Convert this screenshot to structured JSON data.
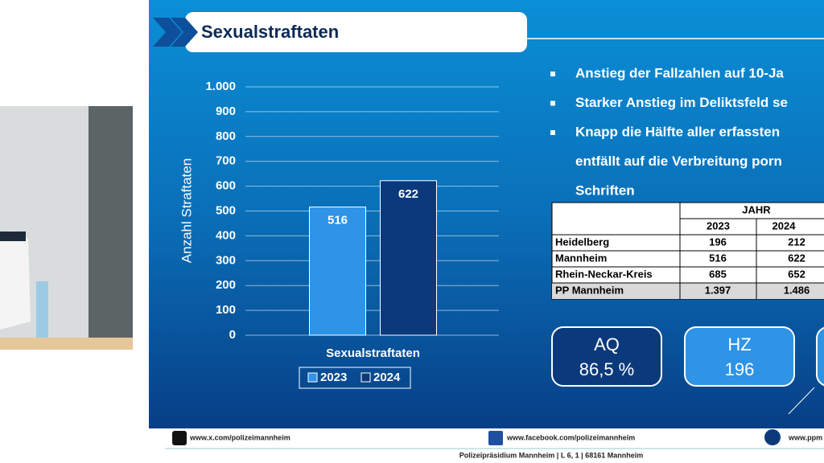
{
  "slide": {
    "title": "Sexualstraftaten",
    "bullets": [
      [
        "Anstieg der Fallzahlen auf 10-Ja"
      ],
      [
        "Starker Anstieg im Deliktsfeld se"
      ],
      [
        "Knapp die Hälfte aller erfassten",
        "entfällt auf die Verbreitung porn",
        "Schriften"
      ]
    ],
    "table": {
      "group_header": "JAHR",
      "columns": [
        "2023",
        "2024"
      ],
      "rows": [
        [
          "Heidelberg",
          "196",
          "212"
        ],
        [
          "Mannheim",
          "516",
          "622"
        ],
        [
          "Rhein-Neckar-Kreis",
          "685",
          "652"
        ],
        [
          "PP Mannheim",
          "1.397",
          "1.486"
        ]
      ]
    },
    "kpis": [
      {
        "label": "AQ",
        "value": "86,5 %"
      },
      {
        "label": "HZ",
        "value": "196"
      }
    ],
    "footer": {
      "x": "www.x.com/polizeimannheim",
      "facebook": "www.facebook.com/polizeimannheim",
      "web": "www.ppm",
      "address": "Polizeipräsidium Mannheim | L 6, 1 | 68161 Mannheim"
    }
  },
  "chart_data": {
    "type": "bar",
    "y_label": "Anzahl Straftaten",
    "categories": [
      "Sexualstraftaten"
    ],
    "series": [
      {
        "name": "2023",
        "color": "#2f93e6",
        "values": [
          516
        ]
      },
      {
        "name": "2024",
        "color": "#0b3a7c",
        "values": [
          622
        ]
      }
    ],
    "ylim": [
      0,
      1000
    ],
    "yticks": [
      0,
      100,
      200,
      300,
      400,
      500,
      600,
      700,
      800,
      900,
      {
        "value": 1000,
        "label": "1.000"
      }
    ],
    "grid": true
  }
}
